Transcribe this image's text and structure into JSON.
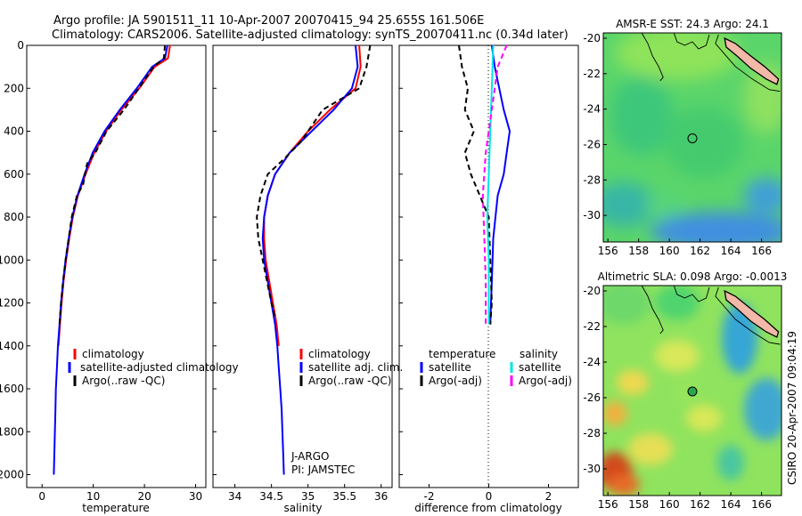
{
  "header": {
    "line1": "Argo profile: JA 5901511_11 10-Apr-2007 20070415_94 25.655S 161.506E",
    "line2": "Climatology: CARS2006. Satellite-adjusted climatology: synTS_20070411.nc (0.34d later)"
  },
  "side_text": "CSIRO 20-Apr-2007 09:04:19",
  "colors": {
    "red": "#ff0000",
    "blue": "#0000ff",
    "black": "#000000",
    "cyan": "#00e5e5",
    "magenta": "#ff00ff"
  },
  "chart_data": [
    {
      "type": "line",
      "xlabel": "temperature",
      "xlim": [
        -3,
        32
      ],
      "ylim": [
        2060,
        0
      ],
      "xticks": [
        0,
        10,
        20,
        30
      ],
      "yticks": [
        0,
        200,
        400,
        600,
        800,
        1000,
        1200,
        1400,
        1600,
        1800,
        2000
      ],
      "legend": [
        "climatology",
        "satellite-adjusted climatology",
        "Argo(..raw -QC)"
      ],
      "legend_position": "bottom",
      "series": [
        {
          "color": "red",
          "dash": "solid",
          "points": [
            [
              25,
              0
            ],
            [
              24.6,
              60
            ],
            [
              22,
              100
            ],
            [
              19,
              200
            ],
            [
              15.5,
              300
            ],
            [
              12.5,
              400
            ],
            [
              10.2,
              500
            ],
            [
              8.5,
              600
            ],
            [
              7,
              700
            ],
            [
              6,
              800
            ],
            [
              5.3,
              900
            ],
            [
              4.7,
              1000
            ],
            [
              4.2,
              1100
            ],
            [
              3.8,
              1200
            ],
            [
              3.5,
              1300
            ],
            [
              3.2,
              1400
            ]
          ]
        },
        {
          "color": "blue",
          "dash": "solid",
          "points": [
            [
              24.5,
              0
            ],
            [
              24,
              60
            ],
            [
              21.5,
              100
            ],
            [
              18.5,
              200
            ],
            [
              15.2,
              300
            ],
            [
              12.2,
              400
            ],
            [
              9.9,
              500
            ],
            [
              8.3,
              600
            ],
            [
              6.9,
              700
            ],
            [
              5.9,
              800
            ],
            [
              5.2,
              900
            ],
            [
              4.6,
              1000
            ],
            [
              4.1,
              1100
            ],
            [
              3.7,
              1200
            ],
            [
              3.4,
              1300
            ],
            [
              3.1,
              1400
            ],
            [
              2.9,
              1500
            ],
            [
              2.7,
              1600
            ],
            [
              2.6,
              1700
            ],
            [
              2.5,
              1800
            ],
            [
              2.4,
              1900
            ],
            [
              2.3,
              2000
            ]
          ]
        },
        {
          "color": "black",
          "dash": "dash",
          "points": [
            [
              24,
              0
            ],
            [
              23.8,
              60
            ],
            [
              21.8,
              100
            ],
            [
              18.9,
              200
            ],
            [
              16,
              300
            ],
            [
              12.6,
              400
            ],
            [
              10.4,
              500
            ],
            [
              8.8,
              550
            ],
            [
              8,
              650
            ],
            [
              6.8,
              700
            ],
            [
              5.8,
              800
            ],
            [
              5.2,
              900
            ],
            [
              4.6,
              1000
            ],
            [
              4.1,
              1100
            ],
            [
              3.7,
              1200
            ],
            [
              3.4,
              1300
            ]
          ]
        }
      ]
    },
    {
      "type": "line",
      "xlabel": "salinity",
      "xlim": [
        33.7,
        36.15
      ],
      "ylim": [
        2060,
        0
      ],
      "xticks": [
        34,
        34.5,
        35,
        35.5,
        36
      ],
      "legend": [
        "climatology",
        "satellite adj. clim.",
        "Argo(..raw -QC)"
      ],
      "legend_position": "bottom",
      "annotation": [
        "J-ARGO",
        "PI: JAMSTEC"
      ],
      "series": [
        {
          "color": "red",
          "dash": "solid",
          "points": [
            [
              35.7,
              0
            ],
            [
              35.72,
              100
            ],
            [
              35.65,
              200
            ],
            [
              35.3,
              300
            ],
            [
              35,
              400
            ],
            [
              34.75,
              500
            ],
            [
              34.55,
              600
            ],
            [
              34.45,
              700
            ],
            [
              34.4,
              800
            ],
            [
              34.4,
              900
            ],
            [
              34.42,
              1000
            ],
            [
              34.47,
              1100
            ],
            [
              34.52,
              1200
            ],
            [
              34.57,
              1300
            ],
            [
              34.6,
              1400
            ]
          ]
        },
        {
          "color": "blue",
          "dash": "solid",
          "points": [
            [
              35.65,
              0
            ],
            [
              35.68,
              100
            ],
            [
              35.6,
              200
            ],
            [
              35.35,
              300
            ],
            [
              35.05,
              400
            ],
            [
              34.75,
              500
            ],
            [
              34.55,
              600
            ],
            [
              34.45,
              700
            ],
            [
              34.4,
              800
            ],
            [
              34.38,
              900
            ],
            [
              34.4,
              1000
            ],
            [
              34.45,
              1100
            ],
            [
              34.5,
              1200
            ],
            [
              34.55,
              1300
            ],
            [
              34.58,
              1400
            ],
            [
              34.6,
              1500
            ],
            [
              34.62,
              1600
            ],
            [
              34.64,
              1700
            ],
            [
              34.65,
              1800
            ],
            [
              34.66,
              1900
            ],
            [
              34.67,
              2000
            ]
          ]
        },
        {
          "color": "black",
          "dash": "dash",
          "points": [
            [
              35.85,
              0
            ],
            [
              35.8,
              100
            ],
            [
              35.7,
              200
            ],
            [
              35.2,
              300
            ],
            [
              34.9,
              450
            ],
            [
              34.7,
              520
            ],
            [
              34.45,
              600
            ],
            [
              34.35,
              700
            ],
            [
              34.3,
              800
            ],
            [
              34.32,
              900
            ],
            [
              34.38,
              1000
            ],
            [
              34.44,
              1100
            ],
            [
              34.5,
              1200
            ],
            [
              34.55,
              1270
            ]
          ]
        }
      ]
    },
    {
      "type": "line",
      "xlabel": "difference from climatology",
      "xlim": [
        -3,
        3
      ],
      "ylim": [
        2060,
        0
      ],
      "xticks": [
        -2,
        0,
        2
      ],
      "legend_left_header": "temperature",
      "legend_right_header": "salinity",
      "legend": [
        "satellite",
        "Argo(-adj)",
        "satellite",
        "Argo(-adj)"
      ],
      "legend_position": "bottom",
      "series": [
        {
          "color": "blue",
          "dash": "solid",
          "points": [
            [
              0.1,
              0
            ],
            [
              0.2,
              100
            ],
            [
              0.5,
              300
            ],
            [
              0.7,
              400
            ],
            [
              0.6,
              500
            ],
            [
              0.5,
              600
            ],
            [
              0.3,
              700
            ],
            [
              0.15,
              900
            ],
            [
              0.1,
              1100
            ],
            [
              0.05,
              1300
            ]
          ]
        },
        {
          "color": "black",
          "dash": "dash",
          "points": [
            [
              -1,
              0
            ],
            [
              -0.9,
              100
            ],
            [
              -0.7,
              200
            ],
            [
              -0.8,
              300
            ],
            [
              -0.5,
              400
            ],
            [
              -0.8,
              500
            ],
            [
              -0.6,
              600
            ],
            [
              -0.3,
              700
            ],
            [
              0,
              800
            ],
            [
              0.05,
              1000
            ],
            [
              0.1,
              1200
            ],
            [
              0.05,
              1300
            ]
          ]
        },
        {
          "color": "cyan",
          "dash": "solid",
          "points": [
            [
              0.15,
              0
            ],
            [
              0.1,
              200
            ],
            [
              0.05,
              400
            ],
            [
              0,
              600
            ],
            [
              -0.05,
              800
            ],
            [
              0,
              1000
            ],
            [
              0,
              1200
            ],
            [
              0,
              1300
            ]
          ]
        },
        {
          "color": "magenta",
          "dash": "dash",
          "points": [
            [
              0.6,
              0
            ],
            [
              0.3,
              100
            ],
            [
              0.1,
              300
            ],
            [
              -0.1,
              500
            ],
            [
              -0.2,
              700
            ],
            [
              -0.15,
              900
            ],
            [
              -0.1,
              1100
            ],
            [
              -0.1,
              1300
            ]
          ]
        }
      ]
    },
    {
      "type": "heatmap",
      "title": "AMSR-E SST: 24.3 Argo: 24.1",
      "xlim": [
        155.7,
        167.3
      ],
      "ylim": [
        -31.5,
        -19.7
      ],
      "xticks": [
        156,
        158,
        160,
        162,
        164,
        166
      ],
      "yticks": [
        -20,
        -22,
        -24,
        -26,
        -28,
        -30
      ],
      "marker": {
        "lon": 161.5,
        "lat": -25.65
      }
    },
    {
      "type": "heatmap",
      "title": "Altimetric SLA: 0.098 Argo: -0.0013",
      "xlim": [
        155.7,
        167.3
      ],
      "ylim": [
        -31.5,
        -19.7
      ],
      "xticks": [
        156,
        158,
        160,
        162,
        164,
        166
      ],
      "yticks": [
        -20,
        -22,
        -24,
        -26,
        -28,
        -30
      ],
      "marker": {
        "lon": 161.5,
        "lat": -25.65
      }
    }
  ]
}
